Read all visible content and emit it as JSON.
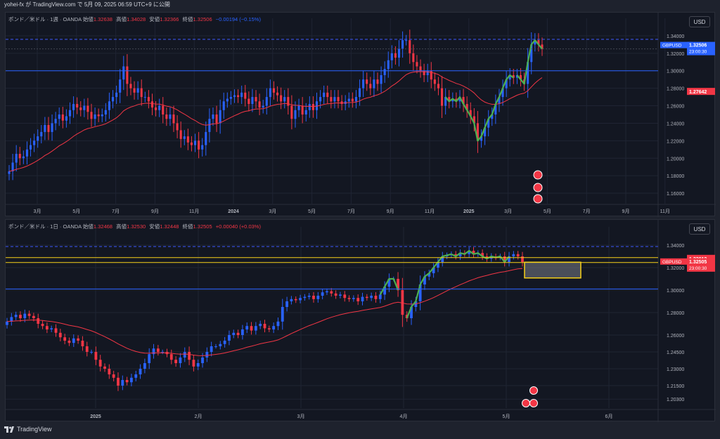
{
  "header": {
    "title": "yohei-fx が TradingView.com で 5月 09, 2025 06:59 UTC+9 に公開"
  },
  "footer": {
    "brand": "TradingView"
  },
  "colors": {
    "up": "#2962ff",
    "down": "#f23645",
    "ma": "#f23645",
    "green": "#4caf50",
    "bg": "#131722",
    "grid": "#1f2433",
    "axis": "#b2b5be",
    "zone": "#f7d118"
  },
  "panes": [
    {
      "symbol": "ポンド／米ドル · 1週 · OANDA",
      "open_label": "始値",
      "open": "1.32638",
      "high_label": "高値",
      "high": "1.34028",
      "low_label": "安値",
      "low": "1.32366",
      "close_label": "終値",
      "close": "1.32506",
      "change": "−0.00194 (−0.15%)",
      "direction": "down",
      "currency": "USD",
      "price_badge": {
        "ticker": "GBPUSD",
        "price": "1.32506",
        "countdown": "23:00:30"
      },
      "ma_badge": "1.27642"
    },
    {
      "symbol": "ポンド／米ドル · 1日 · OANDA",
      "open_label": "始値",
      "open": "1.32468",
      "high_label": "高値",
      "high": "1.32530",
      "low_label": "安値",
      "low": "1.32448",
      "close_label": "終値",
      "close": "1.32505",
      "change": "+0.00040 (+0.03%)",
      "direction": "up",
      "currency": "USD",
      "price_badge": {
        "ticker": "GBPUSD",
        "price": "1.32505",
        "countdown": "23:00:30"
      },
      "level_badge": "1.33012"
    }
  ],
  "chart_data": [
    {
      "type": "candlestick",
      "title": "ポンド／米ドル · 1週 · OANDA",
      "ylim": [
        1.148,
        1.352
      ],
      "y_ticks": [
        1.34,
        1.32,
        1.3,
        1.28,
        1.26,
        1.24,
        1.22,
        1.2,
        1.18,
        1.16
      ],
      "y_tick_labels": [
        "1.34000",
        "1.32000",
        "1.30000",
        "1.28000",
        "1.26000",
        "1.24000",
        "1.22000",
        "1.20000",
        "1.18000",
        "1.16000"
      ],
      "x_tick_labels": [
        "3月",
        "5月",
        "7月",
        "9月",
        "11月",
        "2024",
        "3月",
        "5月",
        "7月",
        "9月",
        "11月",
        "2025",
        "3月",
        "5月",
        "7月",
        "9月",
        "11月"
      ],
      "close": [
        1.185,
        1.195,
        1.205,
        1.2,
        1.202,
        1.21,
        1.215,
        1.22,
        1.225,
        1.23,
        1.238,
        1.23,
        1.24,
        1.245,
        1.25,
        1.243,
        1.248,
        1.255,
        1.262,
        1.258,
        1.255,
        1.26,
        1.253,
        1.245,
        1.25,
        1.248,
        1.25,
        1.255,
        1.265,
        1.27,
        1.275,
        1.29,
        1.305,
        1.285,
        1.28,
        1.275,
        1.28,
        1.27,
        1.27,
        1.265,
        1.258,
        1.255,
        1.26,
        1.25,
        1.245,
        1.25,
        1.24,
        1.232,
        1.222,
        1.225,
        1.218,
        1.215,
        1.22,
        1.21,
        1.215,
        1.23,
        1.245,
        1.25,
        1.24,
        1.255,
        1.265,
        1.268,
        1.27,
        1.272,
        1.27,
        1.275,
        1.268,
        1.262,
        1.27,
        1.265,
        1.258,
        1.26,
        1.27,
        1.28,
        1.275,
        1.272,
        1.265,
        1.27,
        1.26,
        1.245,
        1.255,
        1.26,
        1.25,
        1.255,
        1.262,
        1.255,
        1.265,
        1.27,
        1.275,
        1.27,
        1.265,
        1.27,
        1.265,
        1.262,
        1.265,
        1.268,
        1.265,
        1.27,
        1.28,
        1.29,
        1.285,
        1.28,
        1.29,
        1.285,
        1.295,
        1.302,
        1.312,
        1.32,
        1.315,
        1.325,
        1.335,
        1.335,
        1.32,
        1.31,
        1.305,
        1.3,
        1.295,
        1.3,
        1.29,
        1.285,
        1.28,
        1.26,
        1.27,
        1.265,
        1.268,
        1.265,
        1.27,
        1.262,
        1.255,
        1.248,
        1.24,
        1.22,
        1.225,
        1.235,
        1.245,
        1.25,
        1.262,
        1.27,
        1.28,
        1.29,
        1.295,
        1.292,
        1.295,
        1.29,
        1.285,
        1.31,
        1.33,
        1.335,
        1.33,
        1.325
      ],
      "moving_average": {
        "name": "MA",
        "values": "smoothed close"
      }
    },
    {
      "type": "candlestick",
      "title": "ポンド／米ドル · 1日 · OANDA",
      "ylim": [
        1.195,
        1.35
      ],
      "y_ticks": [
        1.34,
        1.32,
        1.3,
        1.28,
        1.26,
        1.245,
        1.23,
        1.215,
        1.203
      ],
      "y_tick_labels": [
        "1.34000",
        "1.32000",
        "1.30000",
        "1.28000",
        "1.26000",
        "1.24500",
        "1.23000",
        "1.21500",
        "1.20300"
      ],
      "x_tick_labels": [
        "2025",
        "2月",
        "3月",
        "4月",
        "5月",
        "6月"
      ],
      "close": [
        1.272,
        1.276,
        1.278,
        1.275,
        1.279,
        1.277,
        1.275,
        1.27,
        1.268,
        1.265,
        1.266,
        1.262,
        1.258,
        1.255,
        1.253,
        1.257,
        1.255,
        1.25,
        1.245,
        1.245,
        1.238,
        1.232,
        1.23,
        1.225,
        1.222,
        1.215,
        1.22,
        1.218,
        1.222,
        1.225,
        1.23,
        1.235,
        1.243,
        1.248,
        1.245,
        1.245,
        1.243,
        1.238,
        1.235,
        1.24,
        1.245,
        1.238,
        1.232,
        1.235,
        1.24,
        1.245,
        1.25,
        1.25,
        1.252,
        1.255,
        1.26,
        1.262,
        1.26,
        1.265,
        1.268,
        1.264,
        1.268,
        1.27,
        1.266,
        1.265,
        1.268,
        1.272,
        1.285,
        1.29,
        1.292,
        1.291,
        1.293,
        1.294,
        1.295,
        1.292,
        1.295,
        1.298,
        1.299,
        1.297,
        1.295,
        1.296,
        1.293,
        1.292,
        1.293,
        1.29,
        1.294,
        1.293,
        1.295,
        1.292,
        1.296,
        1.303,
        1.31,
        1.31,
        1.3,
        1.278,
        1.275,
        1.285,
        1.29,
        1.305,
        1.312,
        1.315,
        1.32,
        1.325,
        1.33,
        1.331,
        1.332,
        1.33,
        1.333,
        1.332,
        1.335,
        1.332,
        1.333,
        1.33,
        1.328,
        1.33,
        1.329,
        1.33,
        1.325,
        1.33,
        1.332,
        1.33,
        1.325
      ],
      "horizontal_levels": [
        1.34,
        1.305,
        1.33012,
        1.3245
      ],
      "zone": {
        "from": 1.315,
        "to": 1.3245,
        "color": "#f7d118"
      }
    }
  ]
}
